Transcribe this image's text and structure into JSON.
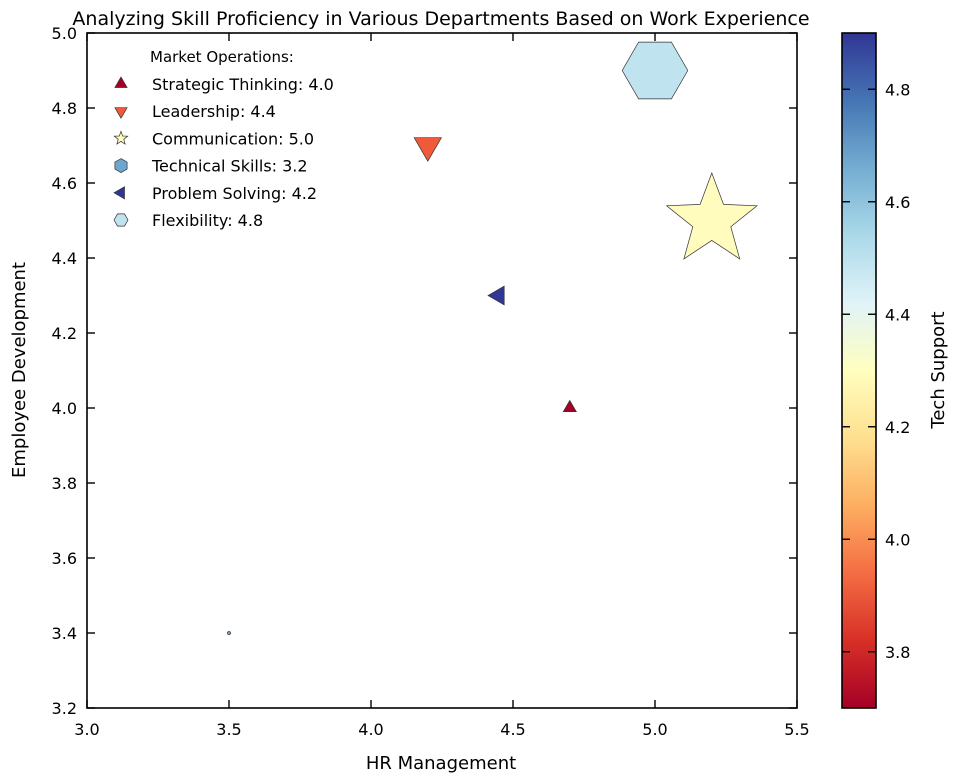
{
  "chart_data": {
    "type": "scatter",
    "title": "Analyzing Skill Proficiency in Various Departments Based on Work Experience",
    "xlabel": "HR Management",
    "ylabel": "Employee Development",
    "xlim": [
      3.0,
      5.5
    ],
    "ylim": [
      3.2,
      5.0
    ],
    "x_ticks": [
      "3.0",
      "3.5",
      "4.0",
      "4.5",
      "5.0",
      "5.5"
    ],
    "y_ticks": [
      "3.2",
      "3.4",
      "3.6",
      "3.8",
      "4.0",
      "4.2",
      "4.4",
      "4.6",
      "4.8",
      "5.0"
    ],
    "grid": false,
    "legend": {
      "title": "Market Operations:",
      "placement": "top-left",
      "entries": [
        {
          "label": "Strategic Thinking: 4.0",
          "marker": "triangle-up"
        },
        {
          "label": "Leadership: 4.4",
          "marker": "triangle-down"
        },
        {
          "label": "Communication: 5.0",
          "marker": "star"
        },
        {
          "label": "Technical Skills: 3.2",
          "marker": "hexagon"
        },
        {
          "label": "Problem Solving: 4.2",
          "marker": "triangle-left"
        },
        {
          "label": "Flexibility: 4.8",
          "marker": "hexagon-flat"
        }
      ]
    },
    "points": [
      {
        "name": "Strategic Thinking",
        "marker": "triangle-up",
        "x": 4.7,
        "y": 4.0,
        "size_value": 4.0,
        "color_value": 3.7,
        "color": "#a50026"
      },
      {
        "name": "Leadership",
        "marker": "triangle-down",
        "x": 4.2,
        "y": 4.7,
        "size_value": 4.4,
        "color_value": 3.9,
        "color": "#f05a3a"
      },
      {
        "name": "Communication",
        "marker": "star",
        "x": 5.2,
        "y": 4.5,
        "size_value": 5.0,
        "color_value": 4.3,
        "color": "#fffcbd"
      },
      {
        "name": "Technical Skills",
        "marker": "hexagon",
        "x": 3.5,
        "y": 3.4,
        "size_value": 3.2,
        "color_value": 4.7,
        "color": "#6ea6cf"
      },
      {
        "name": "Problem Solving",
        "marker": "triangle-left",
        "x": 4.45,
        "y": 4.3,
        "size_value": 4.2,
        "color_value": 4.9,
        "color": "#313695"
      },
      {
        "name": "Flexibility",
        "marker": "hexagon-flat",
        "x": 5.0,
        "y": 4.9,
        "size_value": 4.8,
        "color_value": 4.55,
        "color": "#bfe3ef"
      }
    ],
    "colorbar": {
      "label": "Tech Support",
      "colormap": "RdYlBu",
      "range": [
        3.7,
        4.9
      ],
      "ticks": [
        "3.8",
        "4.0",
        "4.2",
        "4.4",
        "4.6",
        "4.8"
      ],
      "stops": [
        "#a50026",
        "#d73027",
        "#f46d43",
        "#fdae61",
        "#fee090",
        "#ffffbf",
        "#e0f3f8",
        "#abd9e9",
        "#74add1",
        "#4575b4",
        "#313695"
      ]
    }
  }
}
